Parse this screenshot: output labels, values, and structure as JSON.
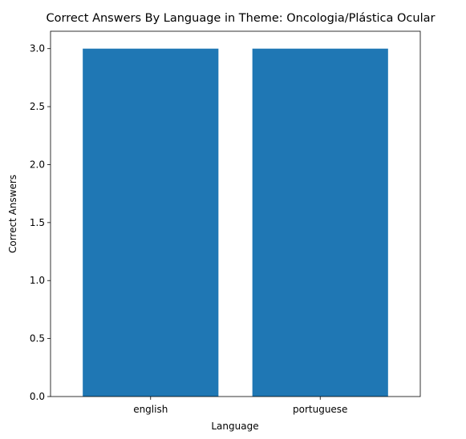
{
  "chart_data": {
    "type": "bar",
    "title": "Correct Answers By Language in Theme: Oncologia/Plástica Ocular",
    "xlabel": "Language",
    "ylabel": "Correct Answers",
    "categories": [
      "english",
      "portuguese"
    ],
    "values": [
      3.0,
      3.0
    ],
    "ylim": [
      0,
      3.15
    ],
    "yticks": [
      "0.0",
      "0.5",
      "1.0",
      "1.5",
      "2.0",
      "2.5",
      "3.0"
    ],
    "bar_color": "#1f77b4",
    "grid": false,
    "legend": "none"
  }
}
